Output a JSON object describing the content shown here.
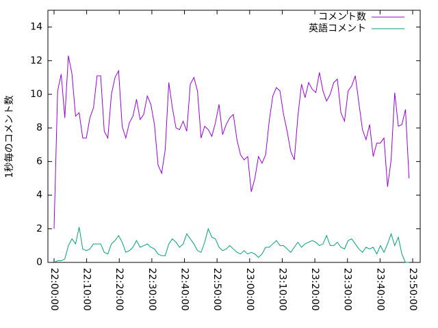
{
  "chart_data": {
    "type": "line",
    "x": [
      "22:00:00",
      "22:01:06",
      "22:02:12",
      "22:03:18",
      "22:04:24",
      "22:05:30",
      "22:06:36",
      "22:07:42",
      "22:08:48",
      "22:09:54",
      "22:11:00",
      "22:12:06",
      "22:13:12",
      "22:14:18",
      "22:15:24",
      "22:16:30",
      "22:17:36",
      "22:18:42",
      "22:19:48",
      "22:20:54",
      "22:22:00",
      "22:23:06",
      "22:24:12",
      "22:25:18",
      "22:26:24",
      "22:27:30",
      "22:28:36",
      "22:29:42",
      "22:30:48",
      "22:31:54",
      "22:33:00",
      "22:34:06",
      "22:35:12",
      "22:36:18",
      "22:37:24",
      "22:38:30",
      "22:39:36",
      "22:40:42",
      "22:41:48",
      "22:42:54",
      "22:44:00",
      "22:45:06",
      "22:46:12",
      "22:47:18",
      "22:48:24",
      "22:49:30",
      "22:50:36",
      "22:51:42",
      "22:52:48",
      "22:53:54",
      "22:55:00",
      "22:56:06",
      "22:57:12",
      "22:58:18",
      "22:59:24",
      "23:00:30",
      "23:01:36",
      "23:02:42",
      "23:03:48",
      "23:04:54",
      "23:06:00",
      "23:07:06",
      "23:08:12",
      "23:09:18",
      "23:10:24",
      "23:11:30",
      "23:12:36",
      "23:13:42",
      "23:14:48",
      "23:15:54",
      "23:17:00",
      "23:18:06",
      "23:19:12",
      "23:20:18",
      "23:21:24",
      "23:22:30",
      "23:23:36",
      "23:24:42",
      "23:25:48",
      "23:26:54",
      "23:28:00",
      "23:29:06",
      "23:30:12",
      "23:31:18",
      "23:32:24",
      "23:33:30",
      "23:34:36",
      "23:35:42",
      "23:36:48",
      "23:37:54",
      "23:39:00",
      "23:40:06",
      "23:41:12",
      "23:42:18",
      "23:43:24",
      "23:44:30",
      "23:45:36",
      "23:46:42",
      "23:47:48",
      "23:48:54"
    ],
    "series": [
      {
        "name": "コメント数",
        "color": "#9400d3",
        "values": [
          2,
          10.2,
          11.2,
          8.6,
          12.3,
          11.2,
          8.7,
          8.9,
          7.4,
          7.4,
          8.6,
          9.2,
          11.1,
          11.1,
          7.8,
          7.4,
          10.0,
          11.0,
          11.4,
          8.1,
          7.4,
          8.3,
          8.7,
          9.7,
          8.5,
          8.8,
          9.9,
          9.4,
          8.2,
          5.8,
          5.3,
          6.7,
          10.7,
          9.2,
          8.0,
          7.9,
          8.4,
          7.8,
          10.6,
          11.0,
          10.2,
          7.4,
          8.1,
          7.9,
          7.5,
          8.3,
          9.4,
          7.6,
          8.2,
          8.6,
          8.8,
          7.3,
          6.4,
          6.1,
          6.3,
          4.2,
          5.0,
          6.3,
          5.9,
          6.4,
          8.4,
          9.9,
          10.4,
          10.2,
          8.8,
          7.8,
          6.6,
          6.1,
          8.7,
          10.6,
          9.8,
          10.7,
          10.3,
          10.1,
          11.3,
          10.2,
          9.6,
          10.0,
          10.7,
          10.9,
          8.9,
          8.4,
          10.2,
          10.5,
          11.1,
          9.5,
          7.9,
          7.3,
          8.2,
          6.3,
          7.1,
          7.1,
          7.4,
          4.5,
          6.1,
          10.1,
          8.1,
          8.2,
          9.1,
          5.0
        ]
      },
      {
        "name": "英語コメント",
        "color": "#009e73",
        "values": [
          0,
          0.1,
          0.1,
          0.2,
          1.0,
          1.4,
          1.1,
          2.1,
          0.8,
          0.7,
          0.8,
          1.1,
          1.1,
          1.1,
          0.6,
          0.5,
          1.1,
          1.3,
          1.6,
          1.2,
          0.6,
          0.7,
          0.9,
          1.3,
          0.9,
          1.0,
          1.1,
          0.9,
          0.8,
          0.5,
          0.4,
          0.4,
          1.1,
          1.4,
          1.2,
          0.9,
          1.1,
          1.7,
          1.4,
          1.1,
          0.7,
          0.6,
          1.2,
          2.0,
          1.5,
          1.4,
          0.9,
          0.7,
          0.8,
          1.0,
          0.8,
          0.6,
          0.5,
          0.7,
          0.5,
          0.6,
          0.5,
          0.3,
          0.5,
          0.9,
          0.9,
          1.1,
          1.3,
          1.0,
          1.0,
          0.8,
          0.6,
          0.9,
          1.2,
          0.9,
          1.1,
          1.2,
          1.3,
          1.2,
          1.0,
          1.1,
          1.6,
          1.0,
          1.0,
          1.2,
          0.9,
          0.8,
          1.3,
          1.4,
          1.1,
          0.8,
          0.6,
          0.9,
          0.8,
          0.9,
          0.5,
          1.0,
          0.6,
          1.1,
          1.7,
          1.0,
          1.5,
          0.5,
          0,
          0
        ]
      }
    ],
    "ylabel": "1秒毎のコメント数",
    "xlim": [
      "21:58:07",
      "23:52:19"
    ],
    "xticks": [
      "22:00:00",
      "22:10:00",
      "22:20:00",
      "22:30:00",
      "22:40:00",
      "22:50:00",
      "23:00:00",
      "23:10:00",
      "23:20:00",
      "23:30:00",
      "23:40:00",
      "23:50:00"
    ],
    "ylim": [
      0,
      15
    ],
    "yticks": [
      0,
      2,
      4,
      6,
      8,
      10,
      12,
      14
    ],
    "grid": false,
    "legend": "top-right"
  }
}
